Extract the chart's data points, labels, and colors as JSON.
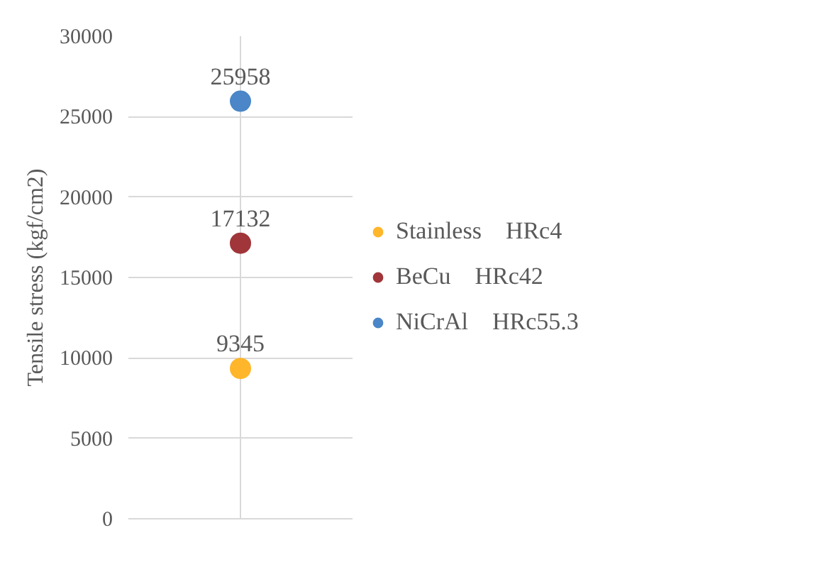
{
  "chart_data": {
    "type": "scatter",
    "ylabel": "Tensile stress (kgf/cm2)",
    "categories": [
      null
    ],
    "series": [
      {
        "name": "Stainless    HRc4",
        "color": "#ffb62b",
        "values": [
          9345
        ]
      },
      {
        "name": "BeCu    HRc42",
        "color": "#a0363a",
        "values": [
          17132
        ]
      },
      {
        "name": "NiCrAl    HRc55.3",
        "color": "#4a86c8",
        "values": [
          25958
        ]
      }
    ],
    "ylim": [
      0,
      30000
    ],
    "yticks": [
      0,
      5000,
      10000,
      15000,
      20000,
      25000,
      30000
    ],
    "grid": true,
    "legend": "right",
    "marker": "circle",
    "data_labels": true,
    "tick_labels": "y"
  }
}
